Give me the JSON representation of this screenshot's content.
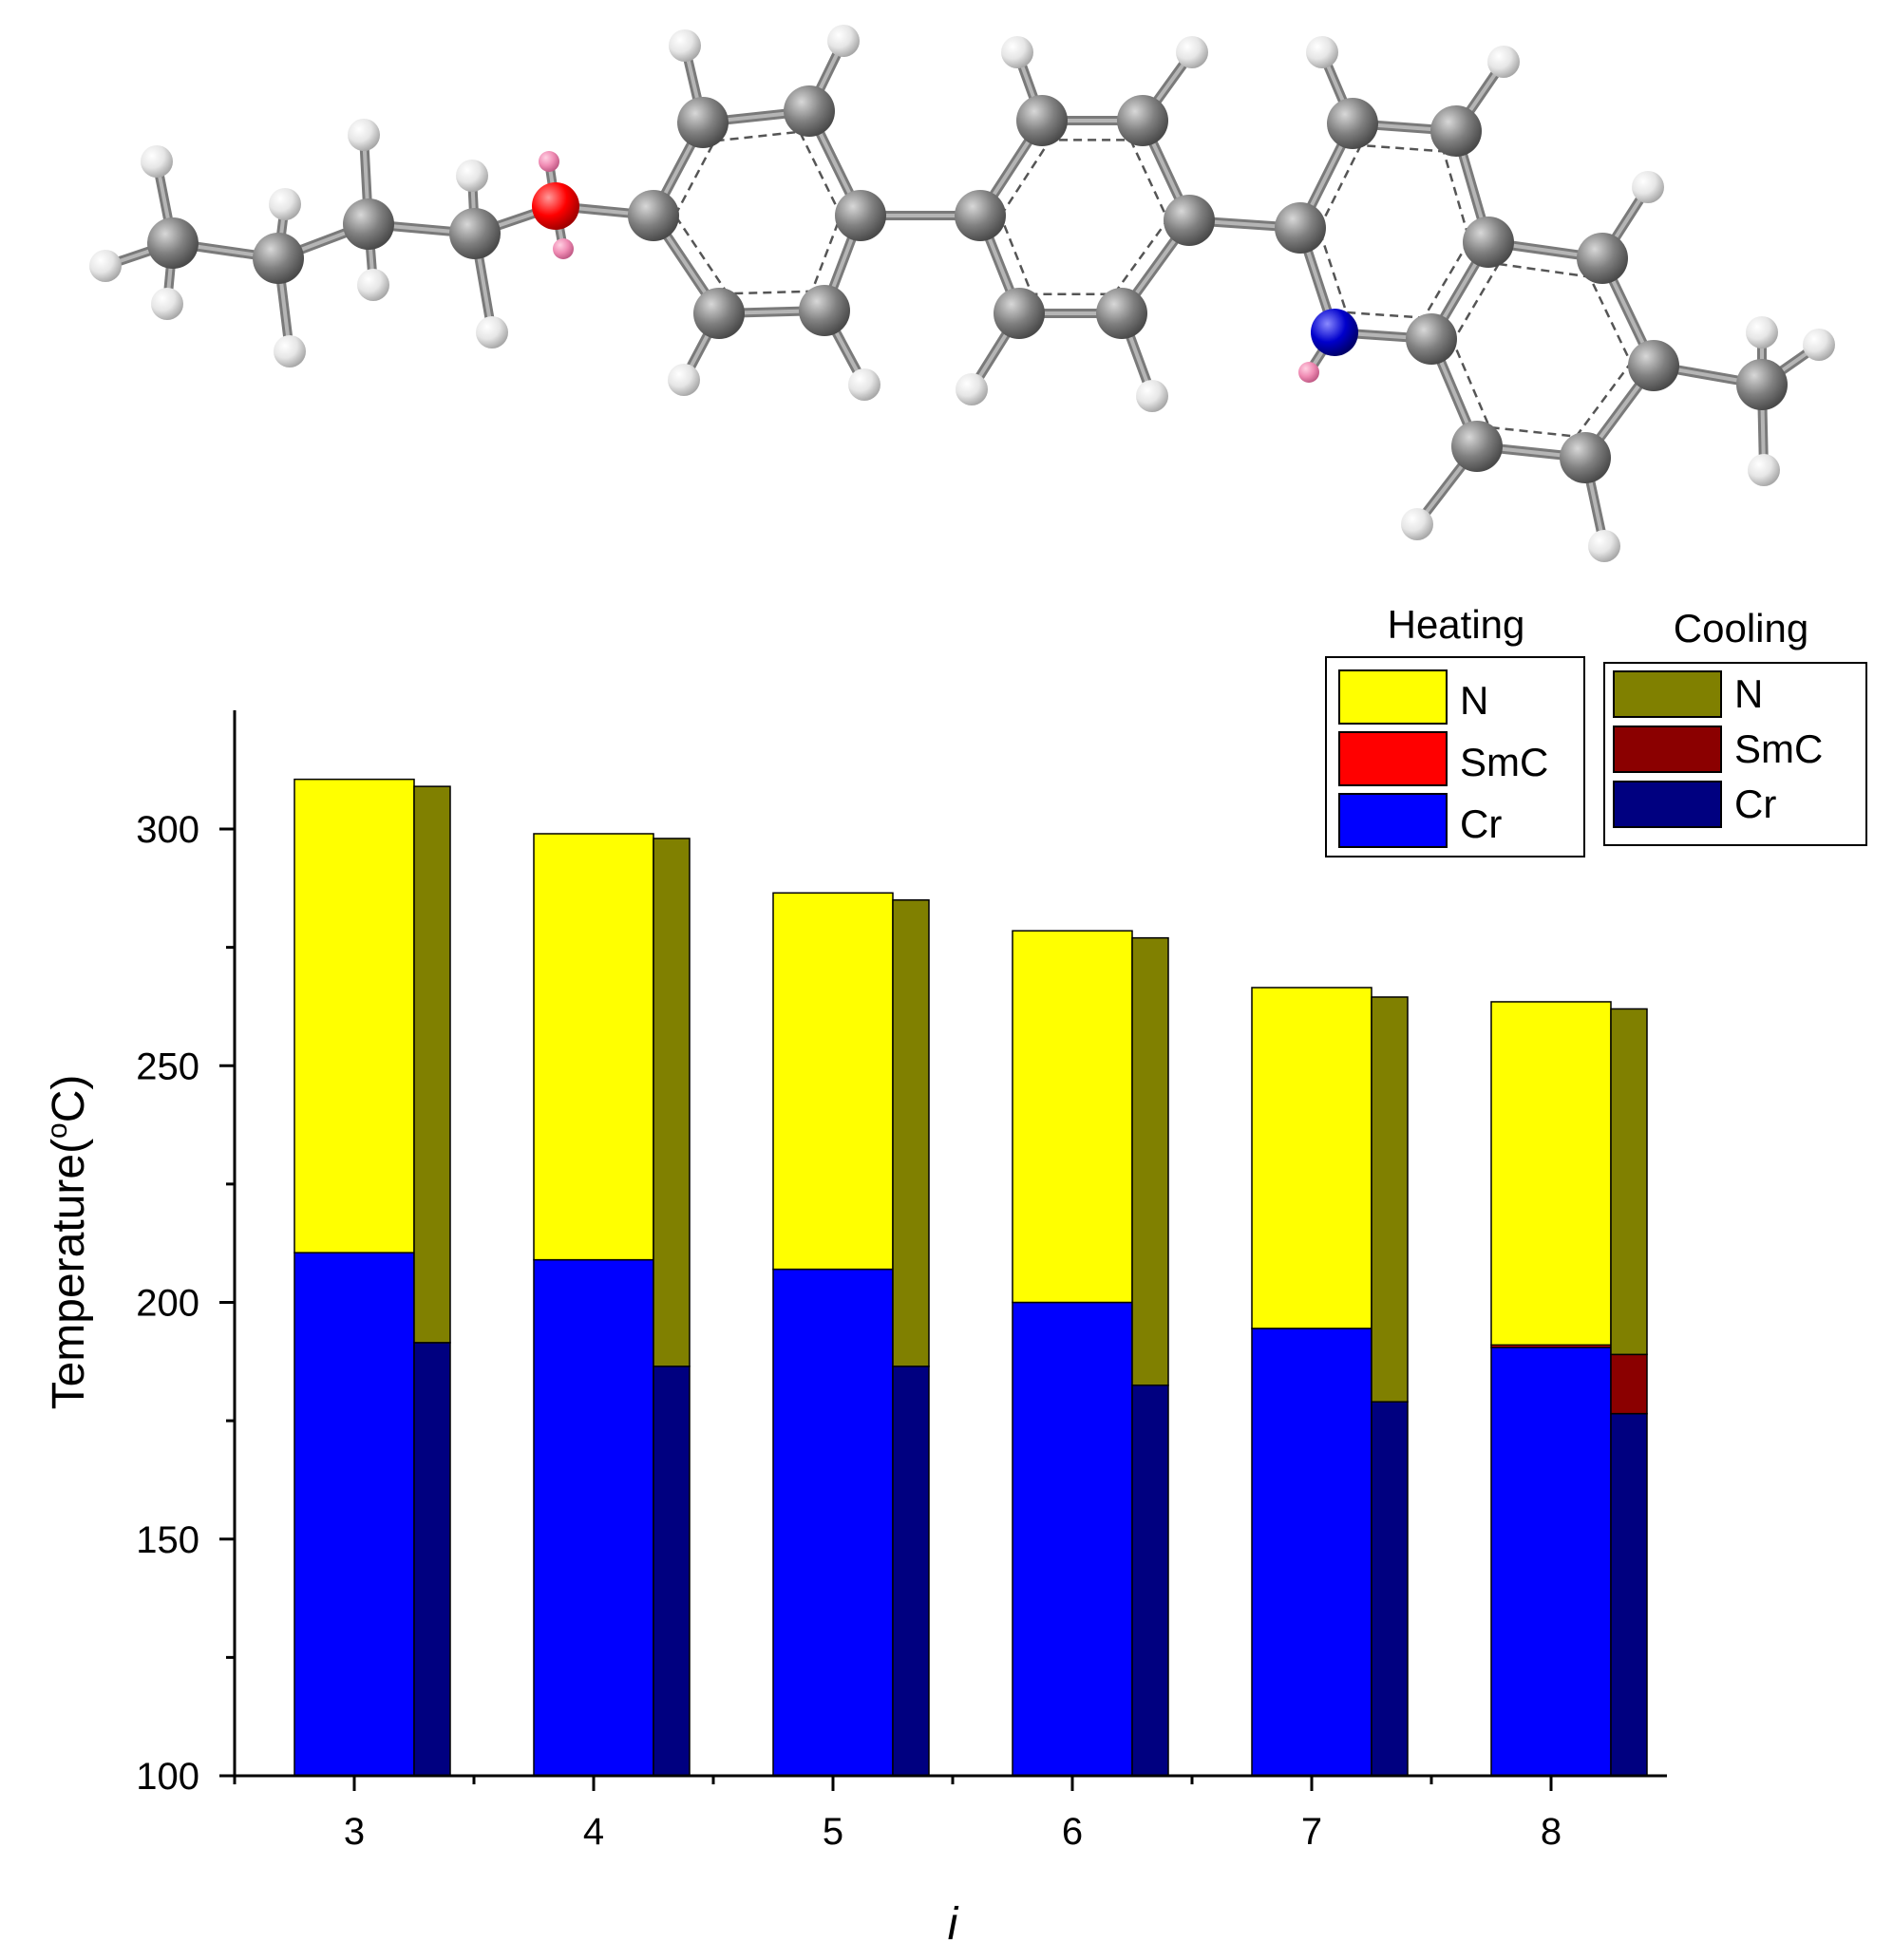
{
  "chart_data": {
    "type": "bar",
    "subtype": "stacked-paired-range",
    "xlabel": "i",
    "ylabel": "Temperature(",
    "ylabel_sup": "o",
    "ylabel_unit": "C)",
    "ylim": [
      100,
      325
    ],
    "yticks": [
      100,
      150,
      200,
      250,
      300
    ],
    "yticks_minor": [
      125,
      175,
      225,
      275
    ],
    "categories": [
      "3",
      "4",
      "5",
      "6",
      "7",
      "8"
    ],
    "heating": {
      "title": "Heating",
      "Cr_to": [
        210.5,
        209,
        207,
        200,
        194.5,
        190.5
      ],
      "SmC_to": [
        210.5,
        209,
        207,
        200,
        194.5,
        191
      ],
      "N_to": [
        310.5,
        299,
        286.5,
        278.5,
        266.5,
        263.5
      ]
    },
    "cooling": {
      "title": "Cooling",
      "Cr_to": [
        191.5,
        186.5,
        186.5,
        182.5,
        179,
        176.5
      ],
      "SmC_to": [
        191.5,
        186.5,
        186.5,
        182.5,
        179,
        189
      ],
      "N_to": [
        309,
        298,
        285,
        277,
        264.5,
        262
      ]
    },
    "legend_placement": "top-right",
    "legend": {
      "heating": {
        "title": "Heating",
        "entries": [
          {
            "label": "N",
            "color": "#FFFF00"
          },
          {
            "label": "SmC",
            "color": "#FF0000"
          },
          {
            "label": "Cr",
            "color": "#0000FF"
          }
        ]
      },
      "cooling": {
        "title": "Cooling",
        "entries": [
          {
            "label": "N",
            "color": "#808000"
          },
          {
            "label": "SmC",
            "color": "#8B0000"
          },
          {
            "label": "Cr",
            "color": "#000080"
          }
        ]
      }
    },
    "grid": false
  },
  "colors": {
    "heating_N": "#FFFF00",
    "heating_SmC": "#FF0000",
    "heating_Cr": "#0000FF",
    "cooling_N": "#808000",
    "cooling_SmC": "#8B0000",
    "cooling_Cr": "#000080",
    "atom_carbon": "#808080",
    "atom_hydrogen": "#E6E6E6",
    "atom_oxygen": "#FF0000",
    "atom_nitrogen": "#0000CC",
    "atom_h_bond": "#F08CB4"
  }
}
